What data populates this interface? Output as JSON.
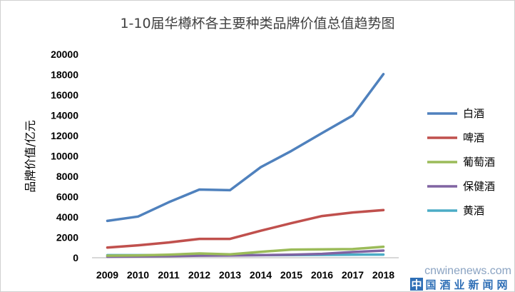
{
  "chart_data": {
    "type": "line",
    "title": "1-10届华樽杯各主要种类品牌价值总值趋势图",
    "xlabel": "",
    "ylabel": "品牌价值/亿元",
    "categories": [
      "2009",
      "2010",
      "2011",
      "2012",
      "2013",
      "2014",
      "2015",
      "2016",
      "2017",
      "2018"
    ],
    "ylim": [
      0,
      20000
    ],
    "yticks": [
      0,
      2000,
      4000,
      6000,
      8000,
      10000,
      12000,
      14000,
      16000,
      18000,
      20000
    ],
    "grid": false,
    "legend_position": "right",
    "series": [
      {
        "name": "白酒",
        "color": "#4f81bd",
        "values": [
          3620,
          4050,
          5450,
          6700,
          6640,
          8900,
          10500,
          12250,
          13980,
          18050
        ]
      },
      {
        "name": "啤酒",
        "color": "#c0504d",
        "values": [
          1000,
          1220,
          1500,
          1850,
          1850,
          2650,
          3400,
          4100,
          4450,
          4680
        ]
      },
      {
        "name": "葡萄酒",
        "color": "#9bbb59",
        "values": [
          200,
          230,
          300,
          420,
          330,
          580,
          800,
          820,
          850,
          1080
        ]
      },
      {
        "name": "保健酒",
        "color": "#8064a2",
        "values": [
          100,
          120,
          160,
          200,
          220,
          250,
          300,
          380,
          560,
          700
        ]
      },
      {
        "name": "黄酒",
        "color": "#4bacc6",
        "values": [
          250,
          250,
          250,
          250,
          250,
          250,
          260,
          280,
          300,
          310
        ]
      }
    ]
  },
  "watermark": {
    "url": "cnwinenews.com",
    "chars": [
      "中",
      "国",
      "酒",
      "业",
      "新",
      "闻",
      "网"
    ]
  }
}
